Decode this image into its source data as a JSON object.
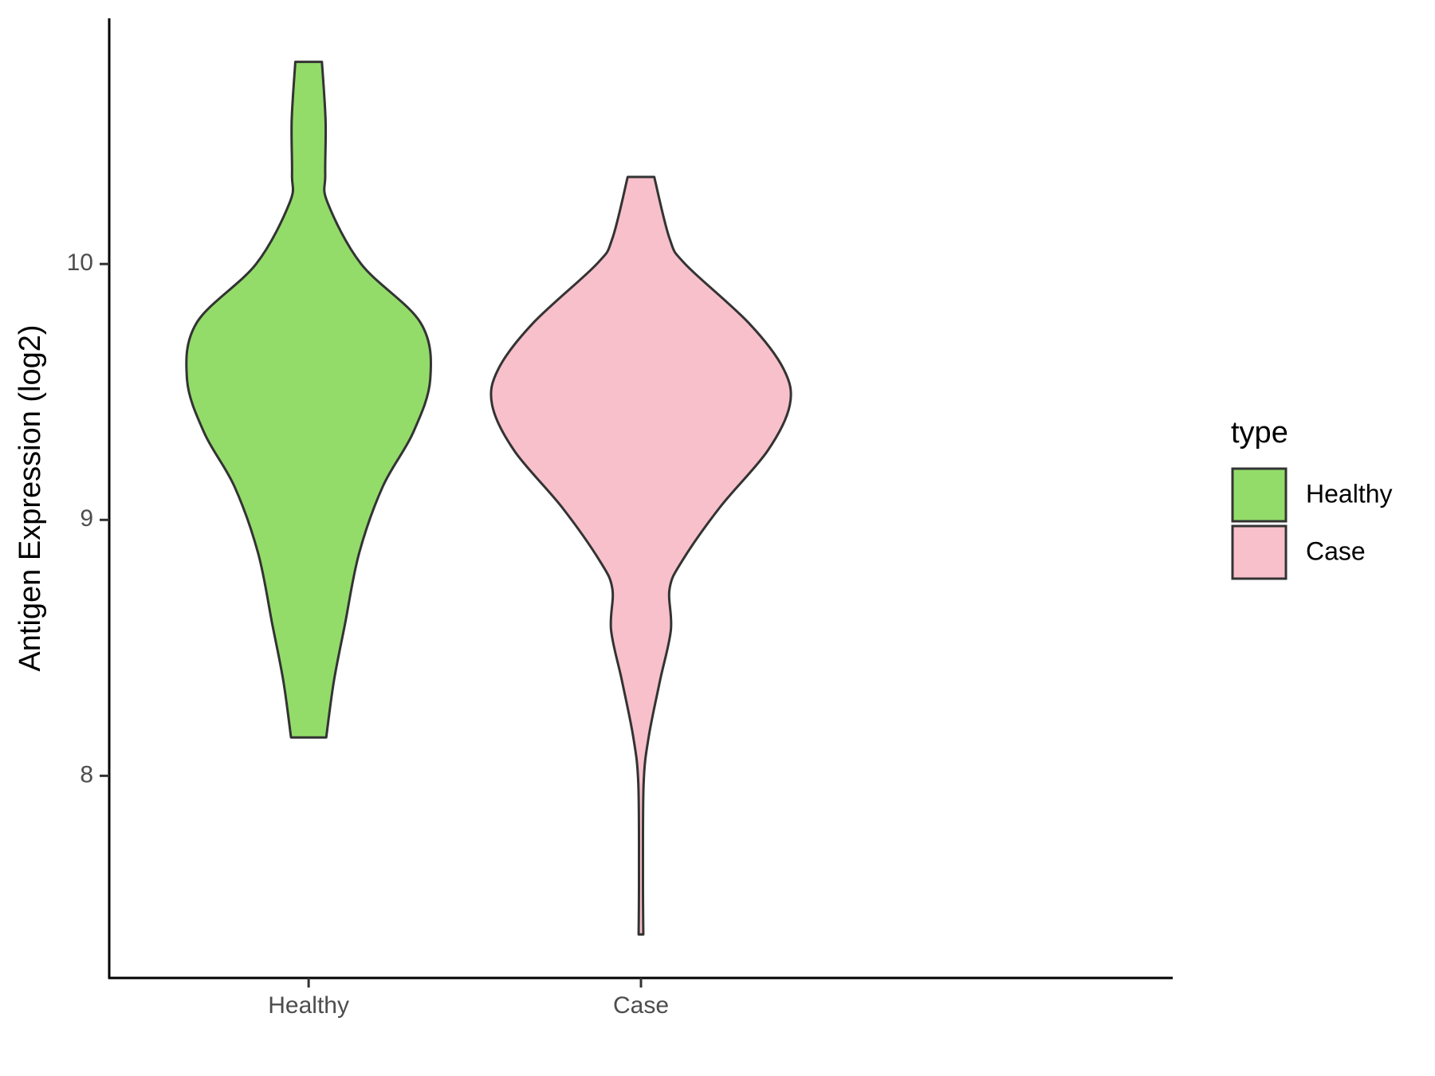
{
  "chart_data": {
    "type": "violin",
    "ylabel": "Antigen Expression (log2)",
    "categories": [
      "Healthy",
      "Case"
    ],
    "legend_title": "type",
    "legend_position": "right",
    "series": [
      {
        "name": "Healthy",
        "color": "#93dc6a",
        "y": [
          10.79,
          10.56,
          10.35,
          10.24,
          10.0,
          9.77,
          9.55,
          9.34,
          9.13,
          8.87,
          8.59,
          8.37,
          8.15
        ],
        "widths": [
          0.04,
          0.051,
          0.05,
          0.057,
          0.158,
          0.337,
          0.366,
          0.314,
          0.223,
          0.152,
          0.109,
          0.076,
          0.053
        ]
      },
      {
        "name": "Case",
        "color": "#f7c0cb",
        "y": [
          10.34,
          10.1,
          10.0,
          9.77,
          9.59,
          9.45,
          9.27,
          9.05,
          8.84,
          8.73,
          8.57,
          8.37,
          8.15,
          7.97,
          7.61,
          7.38
        ],
        "widths": [
          0.04,
          0.086,
          0.133,
          0.324,
          0.429,
          0.448,
          0.381,
          0.238,
          0.124,
          0.086,
          0.09,
          0.057,
          0.023,
          0.008,
          0.006,
          0.007
        ]
      }
    ],
    "ylim": [
      7.21,
      10.96
    ],
    "yticks": [
      8,
      9,
      10
    ]
  }
}
